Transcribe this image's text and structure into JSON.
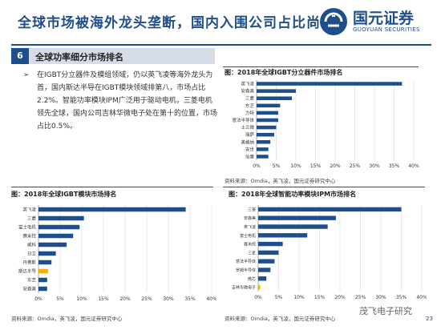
{
  "header": {
    "title": "全球市场被海外龙头垄断，国内入围公司占比尚小",
    "logo_cn": "国元证券",
    "logo_en": "GUOYUAN SECURITIES"
  },
  "section": {
    "number": "6",
    "title": "全球功率细分市场排名"
  },
  "bullet_text": "在IGBT分立器件及模组领域，仍以英飞凌等海外龙头为首，国内斯达半导在IGBT模块领域排第八，市场占比2.2%。智能功率模块IPM广泛用于驱动电机，三菱电机领先全球，国内公司吉林华微电子处在第十的位置，市场占比0.5%。",
  "page_number": "23",
  "watermark": "茂飞电子研究",
  "colors": {
    "primary": "#1f4e8c",
    "highlight": "#f0b400"
  },
  "charts": [
    {
      "caption": "图：2018年全球IGBT分立器件市场排名",
      "source": "资料来源：Omdia，英飞凌，国元证券研究中心"
    },
    {
      "caption": "图：2018年全球IGBT模块市场排名",
      "source": "资料来源：Omdia，英飞凌，国元证券研究中心"
    },
    {
      "caption": "图：2018年全球智能功率模块IPM市场排名",
      "source": "资料来源：Omdia，英飞凌，国元证券研究中心"
    }
  ],
  "chart_data": [
    {
      "type": "bar",
      "orientation": "horizontal",
      "categories": [
        "英飞凌",
        "安森美",
        "三菱",
        "东芝",
        "力特",
        "意法半导体",
        "士兰微",
        "瑞萨",
        "美格纳",
        "安世",
        "仙童"
      ],
      "values": [
        37,
        10,
        9,
        6,
        5.5,
        5.5,
        5,
        4.5,
        3.5,
        3,
        3
      ],
      "xlim": [
        0,
        40
      ],
      "xticks": [
        "0%",
        "5%",
        "10%",
        "15%",
        "20%",
        "25%",
        "30%",
        "35%",
        "40%"
      ],
      "bar_color": "#1f4e8c",
      "grid": true
    },
    {
      "type": "bar",
      "orientation": "horizontal",
      "categories": [
        "英飞凌",
        "三菱",
        "富士电机",
        "赛米控",
        "威科",
        "日立",
        "丹佛斯",
        "斯达半导",
        "东芝",
        "安森美"
      ],
      "values": [
        34,
        10.5,
        9.5,
        8,
        6.5,
        4,
        3,
        2.2,
        2,
        2
      ],
      "highlight": [
        "斯达半导"
      ],
      "xlim": [
        0,
        40
      ],
      "xticks": [
        "0%",
        "5%",
        "10%",
        "15%",
        "20%",
        "25%",
        "30%",
        "35%",
        "40%"
      ],
      "bar_color": "#1f4e8c",
      "highlight_color": "#f0b400",
      "grid": true
    },
    {
      "type": "bar",
      "orientation": "horizontal",
      "categories": [
        "三菱",
        "安森美",
        "英飞凌",
        "富士电机",
        "赛米控",
        "三星",
        "意法半导体",
        "罗姆半导体",
        "微芯",
        "吉林华微电子"
      ],
      "values": [
        35,
        19,
        17,
        12,
        6,
        5,
        4,
        3,
        2,
        0.5
      ],
      "highlight": [
        "吉林华微电子"
      ],
      "xlim": [
        0,
        40
      ],
      "xticks": [
        "0%",
        "5%",
        "10%",
        "15%",
        "20%",
        "25%",
        "30%",
        "35%",
        "40%"
      ],
      "bar_color": "#1f4e8c",
      "highlight_color": "#f0b400",
      "grid": true
    }
  ]
}
